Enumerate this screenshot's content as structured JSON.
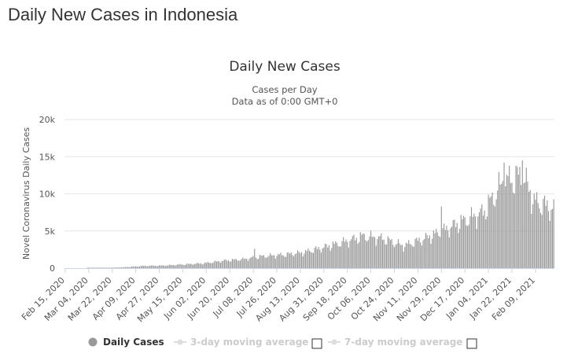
{
  "page": {
    "heading": "Daily New Cases in Indonesia"
  },
  "legend": {
    "items": [
      {
        "label": "Daily Cases",
        "color": "#999999",
        "text_color": "#333333",
        "active": true
      },
      {
        "label": "3-day moving average",
        "color": "#dddddd",
        "text_color": "#cccccc",
        "active": false
      },
      {
        "label": "7-day moving average",
        "color": "#dddddd",
        "text_color": "#cccccc",
        "active": false
      }
    ]
  },
  "chart_data": {
    "type": "bar",
    "title": "Daily New Cases",
    "subtitle_lines": [
      "Cases per Day",
      "Data as of 0:00 GMT+0"
    ],
    "ylabel": "Novel Coronavirus Daily Cases",
    "ylim": [
      0,
      20000
    ],
    "y_ticks": [
      0,
      5000,
      10000,
      15000,
      20000
    ],
    "y_tick_labels": [
      "0",
      "5k",
      "10k",
      "15k",
      "20k"
    ],
    "x_start": "Feb 15, 2020",
    "x_end": "Feb 23, 2021",
    "x_tick_labels": [
      "Feb 15, 2020",
      "Mar 04, 2020",
      "Mar 22, 2020",
      "Apr 09, 2020",
      "Apr 27, 2020",
      "May 15, 2020",
      "Jun 02, 2020",
      "Jun 20, 2020",
      "Jul 08, 2020",
      "Jul 26, 2020",
      "Aug 13, 2020",
      "Aug 31, 2020",
      "Sep 18, 2020",
      "Oct 06, 2020",
      "Oct 24, 2020",
      "Nov 11, 2020",
      "Nov 29, 2020",
      "Dec 17, 2020",
      "Jan 04, 2021",
      "Jan 22, 2021",
      "Feb 09, 2021"
    ],
    "grid": true,
    "bar_color": "#999999",
    "series": [
      {
        "name": "Daily Cases",
        "anchors": [
          [
            "Feb 15, 2020",
            0
          ],
          [
            "Mar 02, 2020",
            0
          ],
          [
            "Mar 15, 2020",
            10
          ],
          [
            "Mar 31, 2020",
            120
          ],
          [
            "Apr 15, 2020",
            300
          ],
          [
            "May 01, 2020",
            350
          ],
          [
            "May 15, 2020",
            500
          ],
          [
            "May 31, 2020",
            650
          ],
          [
            "Jun 15, 2020",
            1000
          ],
          [
            "Jun 30, 2020",
            1200
          ],
          [
            "Jul 15, 2020",
            1600
          ],
          [
            "Jul 31, 2020",
            1800
          ],
          [
            "Aug 15, 2020",
            2100
          ],
          [
            "Aug 31, 2020",
            2800
          ],
          [
            "Sep 15, 2020",
            3500
          ],
          [
            "Sep 30, 2020",
            4300
          ],
          [
            "Oct 15, 2020",
            4000
          ],
          [
            "Oct 31, 2020",
            3000
          ],
          [
            "Nov 15, 2020",
            3900
          ],
          [
            "Nov 30, 2020",
            5000
          ],
          [
            "Dec 15, 2020",
            6300
          ],
          [
            "Dec 31, 2020",
            7500
          ],
          [
            "Jan 15, 2021",
            11500
          ],
          [
            "Jan 30, 2021",
            12500
          ],
          [
            "Feb 08, 2021",
            9000
          ],
          [
            "Feb 15, 2021",
            8500
          ],
          [
            "Feb 23, 2021",
            8000
          ]
        ],
        "spikes": [
          [
            "Jul 09, 2020",
            2600
          ],
          [
            "Nov 29, 2020",
            8300
          ],
          [
            "Jan 16, 2021",
            14200
          ],
          [
            "Jan 30, 2021",
            14500
          ]
        ]
      }
    ]
  }
}
